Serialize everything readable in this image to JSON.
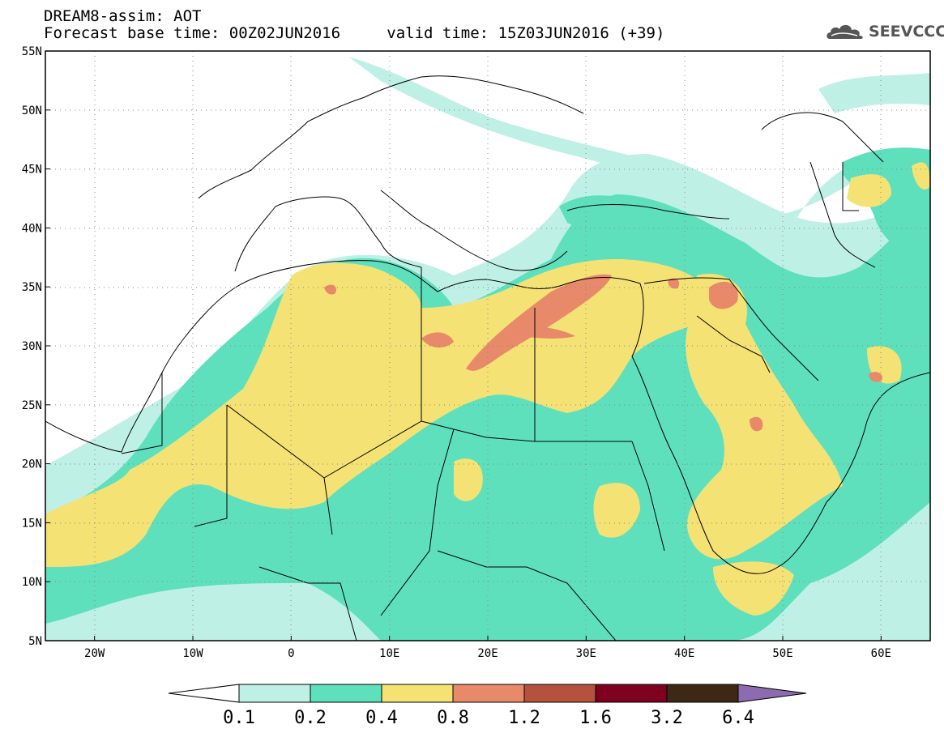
{
  "header": {
    "title": "DREAM8-assim: AOT",
    "subtitle_base": "Forecast base time: 00Z02JUN2016",
    "subtitle_valid": "valid time: 15Z03JUN2016 (+39)",
    "logo_text": "SEEVCCC"
  },
  "map": {
    "lon_range": [
      -25,
      65
    ],
    "lat_range": [
      5,
      55
    ],
    "lat_ticks": [
      "5N",
      "10N",
      "15N",
      "20N",
      "25N",
      "30N",
      "35N",
      "40N",
      "45N",
      "50N",
      "55N"
    ],
    "lon_ticks": [
      "20W",
      "10W",
      "0",
      "10E",
      "20E",
      "30E",
      "40E",
      "50E",
      "60E"
    ],
    "grid": "dotted"
  },
  "colorbar": {
    "labels": [
      "0.1",
      "0.2",
      "0.4",
      "0.8",
      "1.2",
      "1.6",
      "3.2",
      "6.4"
    ],
    "colors": [
      "#ffffff",
      "#bff0e6",
      "#5fe0bd",
      "#f5e275",
      "#e8896a",
      "#b5523e",
      "#800020",
      "#3d2814",
      "#8c6bb1"
    ]
  },
  "colors": {
    "level_0_1": "#bff0e6",
    "level_0_2": "#5fe0bd",
    "level_0_4": "#f5e275",
    "level_0_8": "#e8896a",
    "coast": "#000000"
  }
}
